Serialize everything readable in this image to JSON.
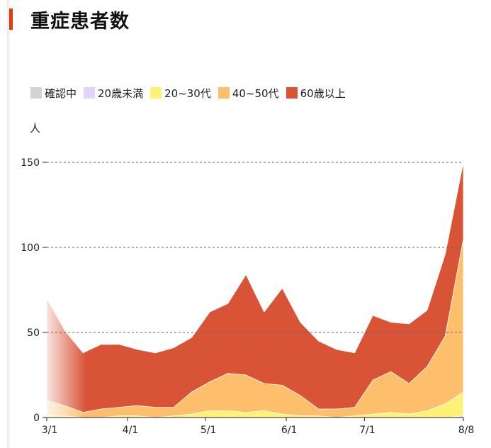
{
  "page": {
    "title": "重症患者数"
  },
  "legend": [
    {
      "label": "確認中",
      "color": "#d3d3d3"
    },
    {
      "label": "20歳未満",
      "color": "#e3d4fa"
    },
    {
      "label": "20~30代",
      "color": "#fff176"
    },
    {
      "label": "40~50代",
      "color": "#fdbf6b"
    },
    {
      "label": "60歳以上",
      "color": "#d95336"
    }
  ],
  "chart_data": {
    "type": "area",
    "stacked": true,
    "ylabel": "人",
    "ylim": [
      0,
      150
    ],
    "yticks": [
      0,
      50,
      100,
      150
    ],
    "grid": "dotted horizontal at 50, 100, 150",
    "xticks": [
      "3/1",
      "4/1",
      "5/1",
      "6/1",
      "7/1",
      "8/8"
    ],
    "x": [
      "3/1",
      "3/8",
      "3/15",
      "3/22",
      "3/29",
      "4/5",
      "4/12",
      "4/19",
      "4/26",
      "5/3",
      "5/10",
      "5/17",
      "5/24",
      "5/31",
      "6/7",
      "6/14",
      "6/21",
      "6/28",
      "7/5",
      "7/12",
      "7/19",
      "7/26",
      "8/2",
      "8/8"
    ],
    "series": [
      {
        "name": "確認中",
        "color": "#d3d3d3",
        "values": [
          0,
          0,
          0,
          0,
          0,
          0,
          0,
          0,
          0,
          0,
          0,
          0,
          0,
          0,
          0,
          0,
          0,
          0,
          0,
          0,
          0,
          0,
          0,
          1
        ]
      },
      {
        "name": "20歳未満",
        "color": "#e3d4fa",
        "values": [
          0,
          0,
          0,
          0,
          0,
          0,
          0,
          0,
          0,
          0,
          0,
          0,
          0,
          0,
          0,
          0,
          0,
          0,
          0,
          0,
          0,
          0,
          0,
          0
        ]
      },
      {
        "name": "20~30代",
        "color": "#fff176",
        "values": [
          1,
          1,
          0,
          0,
          1,
          1,
          0,
          1,
          2,
          4,
          4,
          3,
          4,
          2,
          1,
          1,
          0,
          1,
          2,
          3,
          2,
          4,
          8,
          14
        ]
      },
      {
        "name": "40~50代",
        "color": "#fdbf6b",
        "values": [
          9,
          6,
          3,
          5,
          5,
          6,
          6,
          5,
          13,
          17,
          22,
          22,
          16,
          17,
          12,
          4,
          5,
          5,
          20,
          24,
          18,
          26,
          40,
          90
        ]
      },
      {
        "name": "60歳以上",
        "color": "#d95336",
        "values": [
          60,
          44,
          35,
          38,
          37,
          33,
          32,
          35,
          32,
          41,
          41,
          59,
          42,
          57,
          43,
          40,
          35,
          32,
          38,
          29,
          35,
          33,
          48,
          45
        ]
      }
    ]
  }
}
